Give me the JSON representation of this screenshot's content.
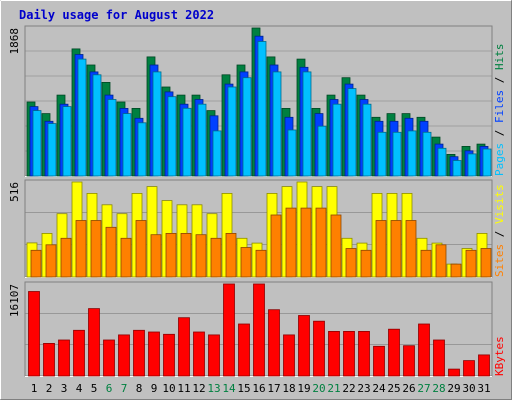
{
  "title": "Daily usage for August 2022",
  "colors": {
    "background": "#c0c0c0",
    "title": "#0000cc",
    "hits": "#008040",
    "files": "#0040ff",
    "pages": "#00c0ff",
    "visits": "#ffff00",
    "sites": "#ff8000",
    "kbytes": "#ff0000",
    "weekend_label": "#008040",
    "weekday_label": "#000000"
  },
  "chart_data": [
    {
      "type": "bar",
      "panel": "hits-files-pages",
      "max_label": "1868",
      "legend": [
        "Pages",
        "Files",
        "Hits"
      ],
      "legend_separator": " / ",
      "ylim": [
        0,
        1868
      ],
      "categories": [
        "1",
        "2",
        "3",
        "4",
        "5",
        "6",
        "7",
        "8",
        "9",
        "10",
        "11",
        "12",
        "13",
        "14",
        "15",
        "16",
        "17",
        "18",
        "19",
        "20",
        "21",
        "22",
        "23",
        "24",
        "25",
        "26",
        "27",
        "28",
        "29",
        "30",
        "31"
      ],
      "series": [
        {
          "name": "Hits",
          "values": [
            934,
            788,
            1021,
            1604,
            1401,
            1182,
            934,
            853,
            1503,
            1123,
            1021,
            1021,
            825,
            1277,
            1401,
            1868,
            1503,
            853,
            1475,
            853,
            1021,
            1241,
            1021,
            741,
            788,
            788,
            741,
            491,
            272,
            373,
            402
          ]
        },
        {
          "name": "Files",
          "values": [
            876,
            691,
            906,
            1533,
            1314,
            1021,
            853,
            728,
            1401,
            1062,
            906,
            966,
            760,
            1160,
            1314,
            1765,
            1401,
            741,
            1372,
            788,
            966,
            1160,
            966,
            691,
            691,
            728,
            691,
            402,
            244,
            318,
            373
          ]
        },
        {
          "name": "Pages",
          "values": [
            825,
            661,
            876,
            1475,
            1277,
            966,
            788,
            671,
            1314,
            1001,
            854,
            906,
            569,
            1123,
            1241,
            1697,
            1314,
            581,
            1314,
            628,
            906,
            1103,
            906,
            551,
            551,
            569,
            551,
            350,
            196,
            279,
            341
          ]
        }
      ]
    },
    {
      "type": "bar",
      "panel": "visits-sites",
      "max_label": "516",
      "legend": [
        "Sites",
        "Visits"
      ],
      "legend_separator": " / ",
      "ylim": [
        0,
        516
      ],
      "categories": [
        "1",
        "2",
        "3",
        "4",
        "5",
        "6",
        "7",
        "8",
        "9",
        "10",
        "11",
        "12",
        "13",
        "14",
        "15",
        "16",
        "17",
        "18",
        "19",
        "20",
        "21",
        "22",
        "23",
        "24",
        "25",
        "26",
        "27",
        "28",
        "29",
        "30",
        "31"
      ],
      "series": [
        {
          "name": "Visits",
          "values": [
            185,
            237,
            344,
            516,
            454,
            392,
            344,
            454,
            491,
            415,
            392,
            392,
            344,
            454,
            210,
            184,
            454,
            491,
            516,
            491,
            491,
            210,
            184,
            454,
            454,
            454,
            210,
            184,
            70,
            155,
            237
          ]
        },
        {
          "name": "Sites",
          "values": [
            145,
            175,
            210,
            307,
            307,
            270,
            210,
            307,
            230,
            237,
            237,
            230,
            210,
            237,
            160,
            145,
            337,
            374,
            374,
            374,
            337,
            155,
            145,
            307,
            307,
            307,
            145,
            175,
            70,
            145,
            155
          ]
        }
      ]
    },
    {
      "type": "bar",
      "panel": "kbytes",
      "max_label": "16107",
      "legend": [
        "KBytes"
      ],
      "ylim": [
        0,
        16107
      ],
      "categories": [
        "1",
        "2",
        "3",
        "4",
        "5",
        "6",
        "7",
        "8",
        "9",
        "10",
        "11",
        "12",
        "13",
        "14",
        "15",
        "16",
        "17",
        "18",
        "19",
        "20",
        "21",
        "22",
        "23",
        "24",
        "25",
        "26",
        "27",
        "28",
        "29",
        "30",
        "31"
      ],
      "series": [
        {
          "name": "KBytes",
          "values": [
            14800,
            5700,
            6300,
            8000,
            11800,
            6300,
            7200,
            8000,
            7700,
            7300,
            10200,
            7700,
            7200,
            16107,
            9100,
            16107,
            11600,
            7200,
            10600,
            9600,
            7800,
            7800,
            7800,
            5200,
            8200,
            5300,
            9100,
            6300,
            1200,
            2700,
            3700
          ]
        }
      ]
    }
  ],
  "day_labels": [
    "1",
    "2",
    "3",
    "4",
    "5",
    "6",
    "7",
    "8",
    "9",
    "10",
    "11",
    "12",
    "13",
    "14",
    "15",
    "16",
    "17",
    "18",
    "19",
    "20",
    "21",
    "22",
    "23",
    "24",
    "25",
    "26",
    "27",
    "28",
    "29",
    "30",
    "31"
  ],
  "weekend_days": [
    6,
    7,
    13,
    14,
    20,
    21,
    27,
    28
  ]
}
